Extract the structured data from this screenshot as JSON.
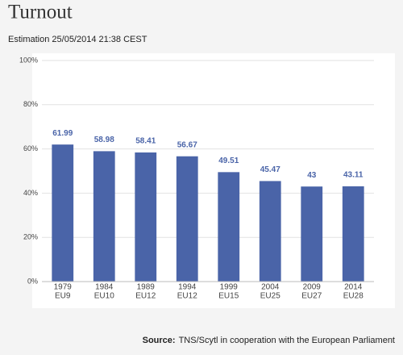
{
  "chart_data": {
    "type": "bar",
    "title": "Turnout",
    "subtitle": "Estimation 25/05/2014 21:38 CEST",
    "categories": [
      [
        "1979",
        "EU9"
      ],
      [
        "1984",
        "EU10"
      ],
      [
        "1989",
        "EU12"
      ],
      [
        "1994",
        "EU12"
      ],
      [
        "1999",
        "EU15"
      ],
      [
        "2004",
        "EU25"
      ],
      [
        "2009",
        "EU27"
      ],
      [
        "2014",
        "EU28"
      ]
    ],
    "values": [
      61.99,
      58.98,
      58.41,
      56.67,
      49.51,
      45.47,
      43,
      43.11
    ],
    "color": "#4a64a8",
    "value_label_color": "#4a64a8",
    "ylim": [
      0,
      100
    ],
    "yticks": [
      {
        "value": 0,
        "label": "0%"
      },
      {
        "value": 20,
        "label": "20%"
      },
      {
        "value": 40,
        "label": "40%"
      },
      {
        "value": 60,
        "label": "60%"
      },
      {
        "value": 80,
        "label": "80%"
      },
      {
        "value": 100,
        "label": "100%"
      }
    ],
    "grid": true,
    "source_label": "Source:",
    "source": "TNS/Scytl in cooperation with the European Parliament"
  }
}
